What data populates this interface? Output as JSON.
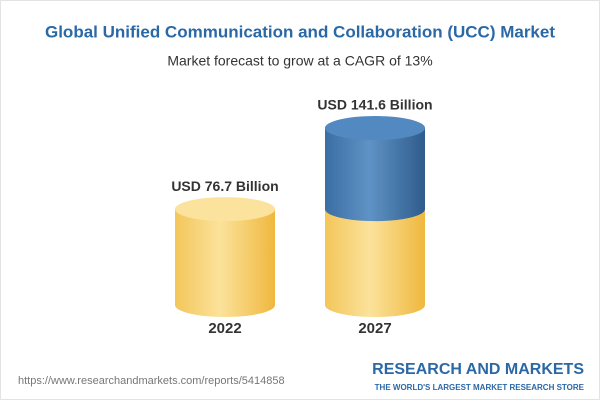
{
  "chart_data": {
    "type": "cylinder",
    "title": "Global Unified Communication and Collaboration (UCC) Market",
    "subtitle": "Market forecast to grow at a CAGR of 13%",
    "categories": [
      "2022",
      "2027"
    ],
    "values": [
      76.7,
      141.6
    ],
    "value_labels": [
      "USD 76.7 Billion",
      "USD 141.6 Billion"
    ],
    "color": "#f5c555",
    "highlight_color": "#4a80b8",
    "source_url": "https://www.researchandmarkets.com/reports/5414858",
    "brand": "RESEARCH AND MARKETS",
    "brand_tagline": "THE WORLD'S LARGEST MARKET RESEARCH STORE"
  }
}
